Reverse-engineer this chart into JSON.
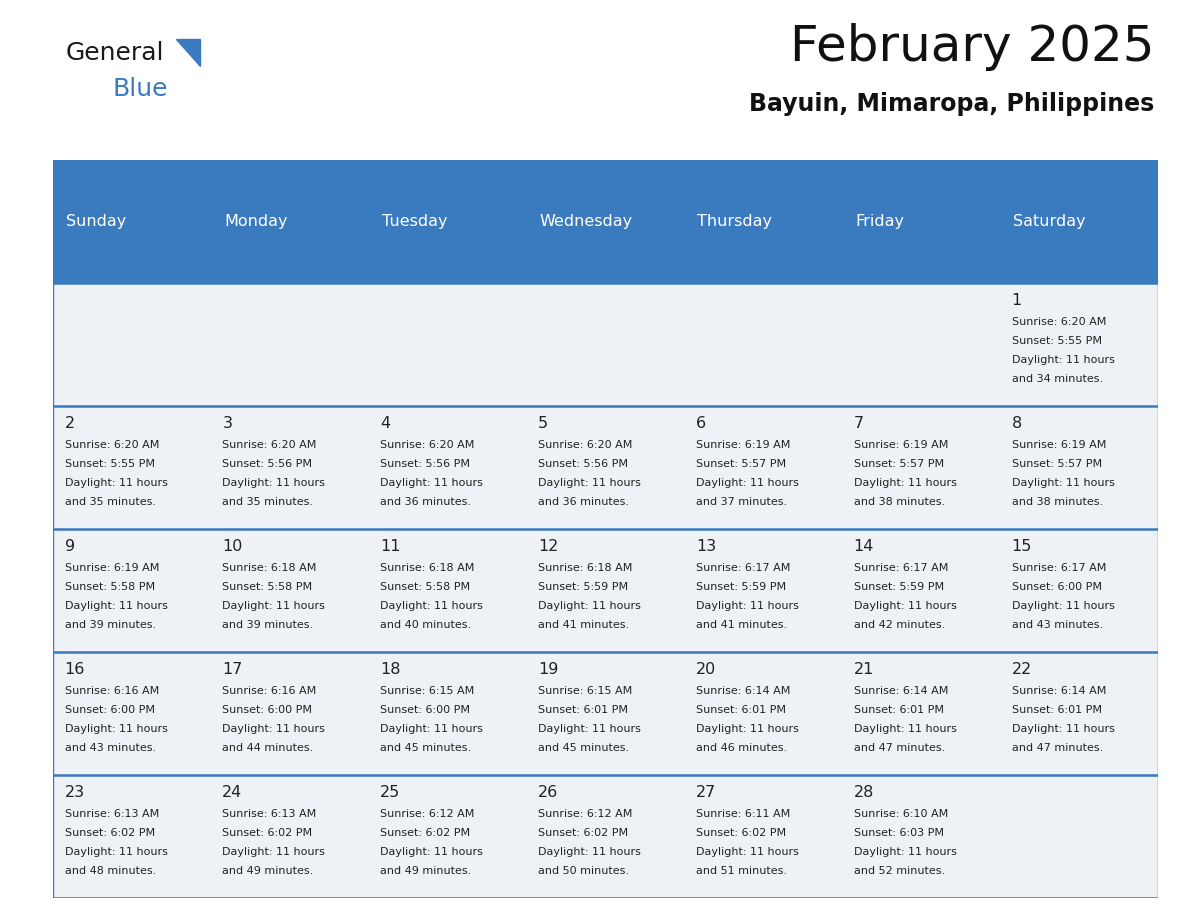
{
  "title": "February 2025",
  "subtitle": "Bayuin, Mimaropa, Philippines",
  "header_color": "#3a7abf",
  "header_text_color": "#ffffff",
  "cell_bg_color": "#eef2f7",
  "border_color": "#3a7abf",
  "text_color": "#222222",
  "day_headers": [
    "Sunday",
    "Monday",
    "Tuesday",
    "Wednesday",
    "Thursday",
    "Friday",
    "Saturday"
  ],
  "days": [
    {
      "day": 1,
      "col": 6,
      "row": 0,
      "sunrise": "6:20 AM",
      "sunset": "5:55 PM",
      "daylight": "11 hours and 34 minutes."
    },
    {
      "day": 2,
      "col": 0,
      "row": 1,
      "sunrise": "6:20 AM",
      "sunset": "5:55 PM",
      "daylight": "11 hours and 35 minutes."
    },
    {
      "day": 3,
      "col": 1,
      "row": 1,
      "sunrise": "6:20 AM",
      "sunset": "5:56 PM",
      "daylight": "11 hours and 35 minutes."
    },
    {
      "day": 4,
      "col": 2,
      "row": 1,
      "sunrise": "6:20 AM",
      "sunset": "5:56 PM",
      "daylight": "11 hours and 36 minutes."
    },
    {
      "day": 5,
      "col": 3,
      "row": 1,
      "sunrise": "6:20 AM",
      "sunset": "5:56 PM",
      "daylight": "11 hours and 36 minutes."
    },
    {
      "day": 6,
      "col": 4,
      "row": 1,
      "sunrise": "6:19 AM",
      "sunset": "5:57 PM",
      "daylight": "11 hours and 37 minutes."
    },
    {
      "day": 7,
      "col": 5,
      "row": 1,
      "sunrise": "6:19 AM",
      "sunset": "5:57 PM",
      "daylight": "11 hours and 38 minutes."
    },
    {
      "day": 8,
      "col": 6,
      "row": 1,
      "sunrise": "6:19 AM",
      "sunset": "5:57 PM",
      "daylight": "11 hours and 38 minutes."
    },
    {
      "day": 9,
      "col": 0,
      "row": 2,
      "sunrise": "6:19 AM",
      "sunset": "5:58 PM",
      "daylight": "11 hours and 39 minutes."
    },
    {
      "day": 10,
      "col": 1,
      "row": 2,
      "sunrise": "6:18 AM",
      "sunset": "5:58 PM",
      "daylight": "11 hours and 39 minutes."
    },
    {
      "day": 11,
      "col": 2,
      "row": 2,
      "sunrise": "6:18 AM",
      "sunset": "5:58 PM",
      "daylight": "11 hours and 40 minutes."
    },
    {
      "day": 12,
      "col": 3,
      "row": 2,
      "sunrise": "6:18 AM",
      "sunset": "5:59 PM",
      "daylight": "11 hours and 41 minutes."
    },
    {
      "day": 13,
      "col": 4,
      "row": 2,
      "sunrise": "6:17 AM",
      "sunset": "5:59 PM",
      "daylight": "11 hours and 41 minutes."
    },
    {
      "day": 14,
      "col": 5,
      "row": 2,
      "sunrise": "6:17 AM",
      "sunset": "5:59 PM",
      "daylight": "11 hours and 42 minutes."
    },
    {
      "day": 15,
      "col": 6,
      "row": 2,
      "sunrise": "6:17 AM",
      "sunset": "6:00 PM",
      "daylight": "11 hours and 43 minutes."
    },
    {
      "day": 16,
      "col": 0,
      "row": 3,
      "sunrise": "6:16 AM",
      "sunset": "6:00 PM",
      "daylight": "11 hours and 43 minutes."
    },
    {
      "day": 17,
      "col": 1,
      "row": 3,
      "sunrise": "6:16 AM",
      "sunset": "6:00 PM",
      "daylight": "11 hours and 44 minutes."
    },
    {
      "day": 18,
      "col": 2,
      "row": 3,
      "sunrise": "6:15 AM",
      "sunset": "6:00 PM",
      "daylight": "11 hours and 45 minutes."
    },
    {
      "day": 19,
      "col": 3,
      "row": 3,
      "sunrise": "6:15 AM",
      "sunset": "6:01 PM",
      "daylight": "11 hours and 45 minutes."
    },
    {
      "day": 20,
      "col": 4,
      "row": 3,
      "sunrise": "6:14 AM",
      "sunset": "6:01 PM",
      "daylight": "11 hours and 46 minutes."
    },
    {
      "day": 21,
      "col": 5,
      "row": 3,
      "sunrise": "6:14 AM",
      "sunset": "6:01 PM",
      "daylight": "11 hours and 47 minutes."
    },
    {
      "day": 22,
      "col": 6,
      "row": 3,
      "sunrise": "6:14 AM",
      "sunset": "6:01 PM",
      "daylight": "11 hours and 47 minutes."
    },
    {
      "day": 23,
      "col": 0,
      "row": 4,
      "sunrise": "6:13 AM",
      "sunset": "6:02 PM",
      "daylight": "11 hours and 48 minutes."
    },
    {
      "day": 24,
      "col": 1,
      "row": 4,
      "sunrise": "6:13 AM",
      "sunset": "6:02 PM",
      "daylight": "11 hours and 49 minutes."
    },
    {
      "day": 25,
      "col": 2,
      "row": 4,
      "sunrise": "6:12 AM",
      "sunset": "6:02 PM",
      "daylight": "11 hours and 49 minutes."
    },
    {
      "day": 26,
      "col": 3,
      "row": 4,
      "sunrise": "6:12 AM",
      "sunset": "6:02 PM",
      "daylight": "11 hours and 50 minutes."
    },
    {
      "day": 27,
      "col": 4,
      "row": 4,
      "sunrise": "6:11 AM",
      "sunset": "6:02 PM",
      "daylight": "11 hours and 51 minutes."
    },
    {
      "day": 28,
      "col": 5,
      "row": 4,
      "sunrise": "6:10 AM",
      "sunset": "6:03 PM",
      "daylight": "11 hours and 52 minutes."
    }
  ],
  "num_rows": 5,
  "num_cols": 7
}
